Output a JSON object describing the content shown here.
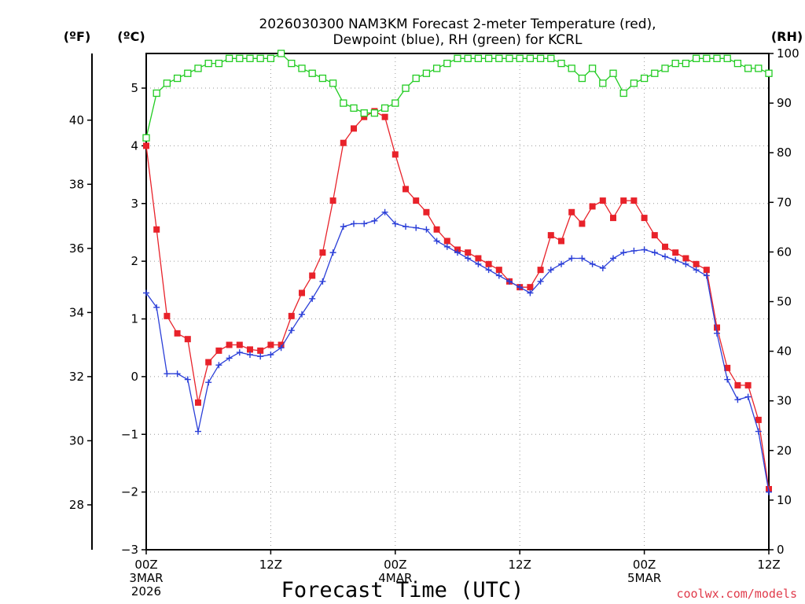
{
  "chart_data": {
    "type": "line",
    "title_lines": [
      "2026030300 NAM3KM Forecast 2-meter Temperature (red),",
      "Dewpoint (blue), RH (green) for KCRL"
    ],
    "units": {
      "fahrenheit": "(ºF)",
      "celsius": "(ºC)",
      "rh": "(RH)"
    },
    "xlabel": "Forecast Time (UTC)",
    "credit": "coolwx.com/models",
    "x_range_hours": [
      0,
      60
    ],
    "x_ticks": [
      {
        "hour": 0,
        "lines": [
          "00Z",
          "3MAR",
          "2026"
        ]
      },
      {
        "hour": 12,
        "lines": [
          "12Z"
        ]
      },
      {
        "hour": 24,
        "lines": [
          "00Z",
          "4MAR"
        ]
      },
      {
        "hour": 36,
        "lines": [
          "12Z"
        ]
      },
      {
        "hour": 48,
        "lines": [
          "00Z",
          "5MAR"
        ]
      },
      {
        "hour": 60,
        "lines": [
          "12Z"
        ]
      }
    ],
    "celsius_axis": {
      "range": [
        -3,
        5.6
      ],
      "ticks": [
        -3,
        -2,
        -1,
        0,
        1,
        2,
        3,
        4,
        5
      ],
      "tick_labels": [
        "−3",
        "−2",
        "−1",
        "0",
        "1",
        "2",
        "3",
        "4",
        "5"
      ]
    },
    "fahrenheit_axis": {
      "range": [
        26.6,
        42.08
      ],
      "ticks": [
        28,
        30,
        32,
        34,
        36,
        38,
        40
      ],
      "tick_labels": [
        "28",
        "30",
        "32",
        "34",
        "36",
        "38",
        "40"
      ]
    },
    "rh_axis": {
      "range": [
        0,
        100
      ],
      "ticks": [
        0,
        10,
        20,
        30,
        40,
        50,
        60,
        70,
        80,
        90,
        100
      ],
      "tick_labels": [
        "0",
        "10",
        "20",
        "30",
        "40",
        "50",
        "60",
        "70",
        "80",
        "90",
        "100"
      ]
    },
    "grid": true,
    "series": [
      {
        "name": "2-meter Temperature",
        "color": "#e8222a",
        "marker": "filled-square",
        "axis": "celsius",
        "x": [
          0,
          1,
          2,
          3,
          4,
          5,
          6,
          7,
          8,
          9,
          10,
          11,
          12,
          13,
          14,
          15,
          16,
          17,
          18,
          19,
          20,
          21,
          22,
          23,
          24,
          25,
          26,
          27,
          28,
          29,
          30,
          31,
          32,
          33,
          34,
          35,
          36,
          37,
          38,
          39,
          40,
          41,
          42,
          43,
          44,
          45,
          46,
          47,
          48,
          49,
          50,
          51,
          52,
          53,
          54,
          55,
          56,
          57,
          58,
          59,
          60
        ],
        "values": [
          4.0,
          2.55,
          1.05,
          0.75,
          0.65,
          -0.45,
          0.25,
          0.45,
          0.55,
          0.55,
          0.47,
          0.45,
          0.55,
          0.55,
          1.05,
          1.45,
          1.75,
          2.15,
          3.05,
          4.05,
          4.3,
          4.5,
          4.6,
          4.5,
          3.85,
          3.25,
          3.05,
          2.85,
          2.55,
          2.35,
          2.2,
          2.15,
          2.05,
          1.95,
          1.85,
          1.65,
          1.55,
          1.55,
          1.85,
          2.45,
          2.35,
          2.85,
          2.65,
          2.95,
          3.05,
          2.75,
          3.05,
          3.05,
          2.75,
          2.45,
          2.25,
          2.15,
          2.05,
          1.95,
          1.85,
          0.85,
          0.15,
          -0.15,
          -0.15,
          -0.75,
          -1.95
        ]
      },
      {
        "name": "Dewpoint",
        "color": "#2b3fd8",
        "marker": "plus",
        "axis": "celsius",
        "x": [
          0,
          1,
          2,
          3,
          4,
          5,
          6,
          7,
          8,
          9,
          10,
          11,
          12,
          13,
          14,
          15,
          16,
          17,
          18,
          19,
          20,
          21,
          22,
          23,
          24,
          25,
          26,
          27,
          28,
          29,
          30,
          31,
          32,
          33,
          34,
          35,
          36,
          37,
          38,
          39,
          40,
          41,
          42,
          43,
          44,
          45,
          46,
          47,
          48,
          49,
          50,
          51,
          52,
          53,
          54,
          55,
          56,
          57,
          58,
          59,
          60
        ],
        "values": [
          1.45,
          1.2,
          0.05,
          0.05,
          -0.05,
          -0.95,
          -0.1,
          0.2,
          0.32,
          0.42,
          0.38,
          0.35,
          0.38,
          0.5,
          0.8,
          1.08,
          1.35,
          1.65,
          2.15,
          2.6,
          2.65,
          2.65,
          2.7,
          2.85,
          2.65,
          2.6,
          2.58,
          2.55,
          2.35,
          2.25,
          2.15,
          2.05,
          1.95,
          1.85,
          1.75,
          1.65,
          1.55,
          1.45,
          1.65,
          1.85,
          1.95,
          2.05,
          2.05,
          1.95,
          1.88,
          2.05,
          2.15,
          2.18,
          2.2,
          2.15,
          2.08,
          2.02,
          1.95,
          1.85,
          1.75,
          0.75,
          -0.05,
          -0.4,
          -0.35,
          -0.95,
          -2.0
        ]
      },
      {
        "name": "RH",
        "color": "#22cc22",
        "marker": "open-square",
        "axis": "rh",
        "x": [
          0,
          1,
          2,
          3,
          4,
          5,
          6,
          7,
          8,
          9,
          10,
          11,
          12,
          13,
          14,
          15,
          16,
          17,
          18,
          19,
          20,
          21,
          22,
          23,
          24,
          25,
          26,
          27,
          28,
          29,
          30,
          31,
          32,
          33,
          34,
          35,
          36,
          37,
          38,
          39,
          40,
          41,
          42,
          43,
          44,
          45,
          46,
          47,
          48,
          49,
          50,
          51,
          52,
          53,
          54,
          55,
          56,
          57,
          58,
          59,
          60
        ],
        "values": [
          83,
          92,
          94,
          95,
          96,
          97,
          98,
          98,
          99,
          99,
          99,
          99,
          99,
          100,
          98,
          97,
          96,
          95,
          94,
          90,
          89,
          88,
          88,
          89,
          90,
          93,
          95,
          96,
          97,
          98,
          99,
          99,
          99,
          99,
          99,
          99,
          99,
          99,
          99,
          99,
          98,
          97,
          95,
          97,
          94,
          96,
          92,
          94,
          95,
          96,
          97,
          98,
          98,
          99,
          99,
          99,
          99,
          98,
          97,
          97,
          96
        ]
      }
    ]
  }
}
